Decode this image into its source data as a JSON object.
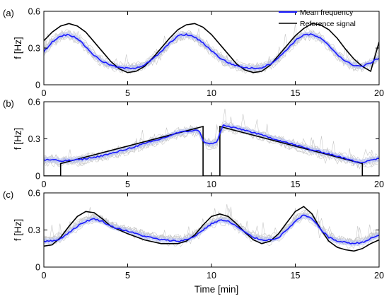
{
  "figure": {
    "xlabel": "Time [min]",
    "legend": {
      "placement": "top-right",
      "entries": [
        {
          "label": "Mean frequency",
          "color": "#1a1aff"
        },
        {
          "label": "Reference signal",
          "color": "#000000"
        }
      ]
    },
    "colors": {
      "mean": "#1a1aff",
      "reference": "#000000",
      "trials": "#c8c8c8",
      "band": "#a9b8ff"
    }
  },
  "chart_data": [
    {
      "type": "line",
      "panel_label": "(a)",
      "ylabel": "f [Hz]",
      "xlim": [
        0,
        20
      ],
      "ylim": [
        0,
        0.6
      ],
      "xticks": [
        0,
        5,
        10,
        15,
        20
      ],
      "yticks": [
        0,
        0.3,
        0.6
      ],
      "ytick_labels": [
        "0",
        "0.3",
        "0.6"
      ],
      "grid": false,
      "series": [
        {
          "name": "Reference signal",
          "color": "#000000",
          "x": [
            0,
            0.5,
            1,
            1.5,
            2,
            2.5,
            3,
            3.5,
            4,
            4.5,
            5,
            5.5,
            6,
            6.5,
            7,
            7.5,
            8,
            8.5,
            9,
            9.5,
            10,
            10.5,
            11,
            11.5,
            12,
            12.5,
            13,
            13.5,
            14,
            14.5,
            15,
            15.5,
            16,
            16.5,
            17,
            17.5,
            18,
            18.5,
            19,
            19.5,
            20
          ],
          "y": [
            0.36,
            0.43,
            0.48,
            0.5,
            0.48,
            0.43,
            0.35,
            0.27,
            0.19,
            0.13,
            0.1,
            0.11,
            0.15,
            0.22,
            0.3,
            0.38,
            0.45,
            0.49,
            0.5,
            0.47,
            0.41,
            0.33,
            0.25,
            0.17,
            0.12,
            0.1,
            0.11,
            0.16,
            0.24,
            0.32,
            0.4,
            0.46,
            0.5,
            0.49,
            0.45,
            0.38,
            0.29,
            0.21,
            0.15,
            0.11,
            0.35
          ]
        },
        {
          "name": "Mean frequency",
          "color": "#1a1aff",
          "x": [
            0,
            0.5,
            1,
            1.5,
            2,
            2.5,
            3,
            3.5,
            4,
            4.5,
            5,
            5.5,
            6,
            6.5,
            7,
            7.5,
            8,
            8.5,
            9,
            9.5,
            10,
            10.5,
            11,
            11.5,
            12,
            12.5,
            13,
            13.5,
            14,
            14.5,
            15,
            15.5,
            16,
            16.5,
            17,
            17.5,
            18,
            18.5,
            19,
            19.5,
            20
          ],
          "y": [
            0.27,
            0.35,
            0.4,
            0.41,
            0.38,
            0.31,
            0.24,
            0.19,
            0.16,
            0.14,
            0.135,
            0.14,
            0.16,
            0.21,
            0.27,
            0.34,
            0.4,
            0.41,
            0.39,
            0.34,
            0.28,
            0.22,
            0.18,
            0.155,
            0.14,
            0.135,
            0.14,
            0.17,
            0.22,
            0.29,
            0.36,
            0.41,
            0.41,
            0.38,
            0.32,
            0.25,
            0.19,
            0.16,
            0.15,
            0.18,
            0.22
          ]
        }
      ]
    },
    {
      "type": "line",
      "panel_label": "(b)",
      "ylabel": "f [Hz]",
      "xlim": [
        0,
        20
      ],
      "ylim": [
        0,
        0.6
      ],
      "xticks": [
        0,
        5,
        10,
        15,
        20
      ],
      "yticks": [
        0,
        0.3,
        0.6
      ],
      "ytick_labels": [
        "0",
        "0.3",
        "0.6"
      ],
      "grid": false,
      "series": [
        {
          "name": "Reference signal",
          "color": "#000000",
          "x": [
            0,
            1,
            1,
            9.5,
            9.5,
            10.5,
            10.5,
            19,
            19,
            20
          ],
          "y": [
            0,
            0,
            0.1,
            0.4,
            0,
            0,
            0.4,
            0.1,
            0,
            0
          ]
        },
        {
          "name": "Mean frequency",
          "color": "#1a1aff",
          "x": [
            0,
            0.5,
            1,
            2,
            3,
            4,
            5,
            6,
            7,
            8,
            8.5,
            9,
            9.3,
            9.5,
            9.7,
            10,
            10.3,
            10.5,
            10.7,
            11,
            12,
            13,
            14,
            15,
            16,
            17,
            18,
            18.5,
            19,
            19.5,
            20
          ],
          "y": [
            0.13,
            0.13,
            0.12,
            0.13,
            0.15,
            0.18,
            0.22,
            0.26,
            0.3,
            0.35,
            0.36,
            0.37,
            0.36,
            0.28,
            0.27,
            0.26,
            0.27,
            0.34,
            0.41,
            0.4,
            0.37,
            0.33,
            0.29,
            0.25,
            0.21,
            0.18,
            0.14,
            0.12,
            0.11,
            0.13,
            0.14
          ]
        }
      ]
    },
    {
      "type": "line",
      "panel_label": "(c)",
      "ylabel": "f [Hz]",
      "xlim": [
        0,
        20
      ],
      "ylim": [
        0,
        0.6
      ],
      "xticks": [
        0,
        5,
        10,
        15,
        20
      ],
      "yticks": [
        0,
        0.3,
        0.6
      ],
      "ytick_labels": [
        "0",
        "0.3",
        "0.6"
      ],
      "grid": false,
      "series": [
        {
          "name": "Reference signal",
          "color": "#000000",
          "x": [
            0,
            0.5,
            1,
            1.5,
            2,
            2.5,
            3,
            3.5,
            4,
            5,
            6,
            7,
            8,
            8.5,
            9,
            9.5,
            10,
            10.5,
            11,
            11.5,
            12,
            12.5,
            13,
            13.5,
            14,
            14.5,
            15,
            15.5,
            16,
            16.5,
            17,
            17.5,
            18,
            18.5,
            19,
            19.5,
            20
          ],
          "y": [
            0.17,
            0.18,
            0.24,
            0.33,
            0.41,
            0.45,
            0.44,
            0.39,
            0.33,
            0.27,
            0.22,
            0.19,
            0.19,
            0.21,
            0.26,
            0.34,
            0.41,
            0.43,
            0.41,
            0.35,
            0.28,
            0.22,
            0.19,
            0.21,
            0.27,
            0.36,
            0.45,
            0.49,
            0.43,
            0.31,
            0.21,
            0.16,
            0.14,
            0.13,
            0.15,
            0.19,
            0.22
          ]
        },
        {
          "name": "Mean frequency",
          "color": "#1a1aff",
          "x": [
            0,
            0.5,
            1,
            1.5,
            2,
            2.5,
            3,
            3.5,
            4,
            5,
            6,
            7,
            8,
            8.5,
            9,
            9.5,
            10,
            10.5,
            11,
            11.5,
            12,
            12.5,
            13,
            13.5,
            14,
            14.5,
            15,
            15.5,
            16,
            16.5,
            17,
            17.5,
            18,
            18.5,
            19,
            19.5,
            20
          ],
          "y": [
            0.21,
            0.21,
            0.23,
            0.28,
            0.33,
            0.37,
            0.39,
            0.37,
            0.33,
            0.29,
            0.25,
            0.22,
            0.21,
            0.22,
            0.25,
            0.3,
            0.35,
            0.38,
            0.37,
            0.33,
            0.28,
            0.24,
            0.22,
            0.22,
            0.24,
            0.3,
            0.37,
            0.42,
            0.39,
            0.31,
            0.24,
            0.21,
            0.2,
            0.19,
            0.2,
            0.23,
            0.26
          ]
        }
      ]
    }
  ]
}
